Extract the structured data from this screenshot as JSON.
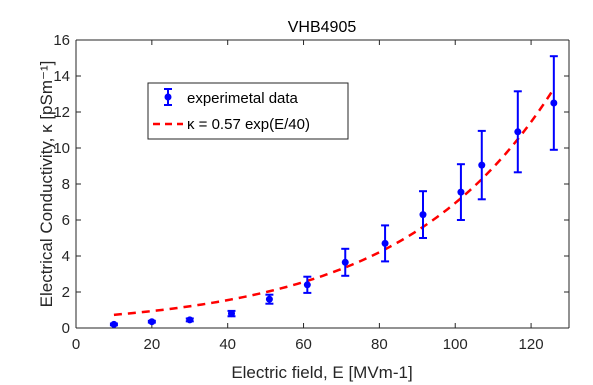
{
  "chart_data": {
    "type": "scatter",
    "title": "VHB4905",
    "xlabel": "Electric field, E [MVm-1]",
    "ylabel": "Electrical Conductivity, κ [pSm⁻¹]",
    "xlim": [
      0,
      130
    ],
    "ylim": [
      0,
      16
    ],
    "xticks": [
      0,
      20,
      40,
      60,
      80,
      100,
      120
    ],
    "yticks": [
      0,
      2,
      4,
      6,
      8,
      10,
      12,
      14,
      16
    ],
    "grid": false,
    "legend_position": "top-left",
    "series": [
      {
        "name": "experimetal data",
        "kind": "errorbar",
        "color": "#0000ff",
        "x": [
          10,
          20,
          30,
          41,
          51,
          61,
          71,
          81.5,
          91.5,
          101.5,
          107,
          116.5,
          126
        ],
        "y": [
          0.2,
          0.35,
          0.45,
          0.8,
          1.6,
          2.4,
          3.65,
          4.7,
          6.3,
          7.55,
          9.05,
          10.9,
          12.5
        ],
        "err": [
          0.05,
          0.05,
          0.08,
          0.15,
          0.25,
          0.45,
          0.75,
          1.0,
          1.3,
          1.55,
          1.9,
          2.25,
          2.6
        ]
      },
      {
        "name": "κ = 0.57 exp(E/40)",
        "kind": "fit",
        "color": "#ff0000",
        "style": "dashed",
        "a": 0.57,
        "b": 40,
        "x_range": [
          10,
          126
        ]
      }
    ]
  }
}
